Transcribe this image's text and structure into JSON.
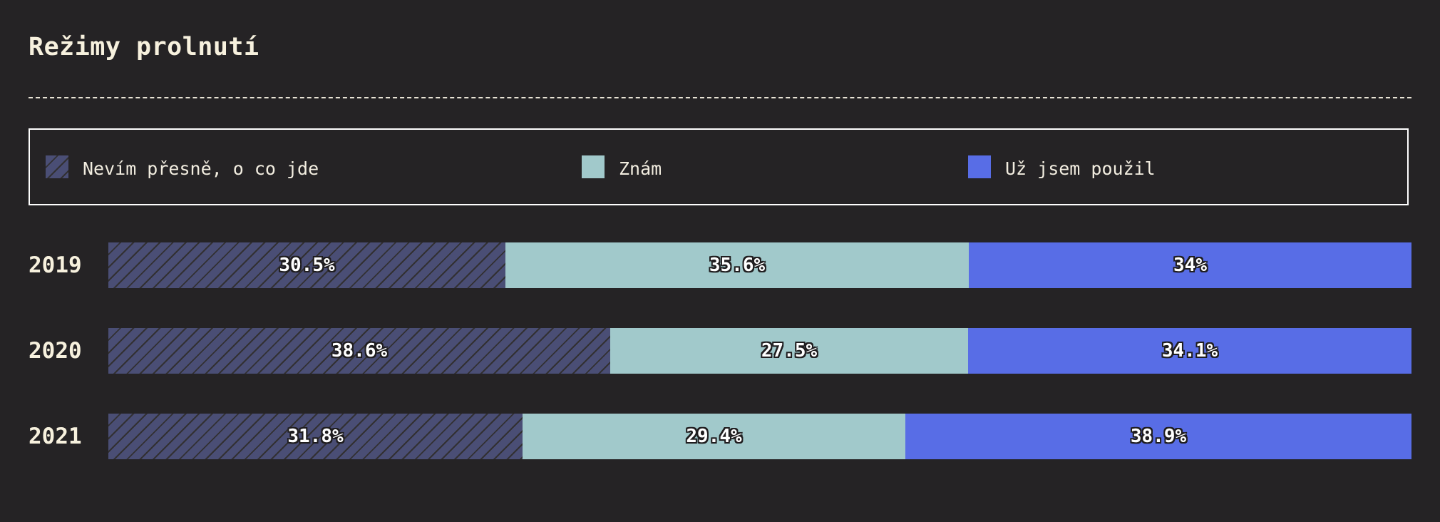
{
  "title": "Režimy prolnutí",
  "legend": [
    {
      "label": "Nevím přesně, o co jde",
      "color": "#4a4e75"
    },
    {
      "label": "Znám",
      "color": "#a1c9cb"
    },
    {
      "label": "Už jsem použil",
      "color": "#586de6"
    }
  ],
  "chart_data": {
    "type": "bar",
    "orientation": "horizontal",
    "stacked": true,
    "title": "Režimy prolnutí",
    "categories": [
      "2019",
      "2020",
      "2021"
    ],
    "series": [
      {
        "name": "Nevím přesně, o co jde",
        "values": [
          30.5,
          38.6,
          31.8
        ],
        "color": "#4a4e75",
        "pattern": "diagonal-hatch"
      },
      {
        "name": "Znám",
        "values": [
          35.6,
          27.5,
          29.4
        ],
        "color": "#a1c9cb"
      },
      {
        "name": "Už jsem použil",
        "values": [
          34,
          34.1,
          38.9
        ],
        "color": "#586de6"
      }
    ],
    "data_labels": [
      [
        "30.5%",
        "35.6%",
        "34%"
      ],
      [
        "38.6%",
        "27.5%",
        "34.1%"
      ],
      [
        "31.8%",
        "29.4%",
        "38.9%"
      ]
    ],
    "xlim": [
      0,
      100
    ],
    "legend_position": "top",
    "grid": false
  }
}
